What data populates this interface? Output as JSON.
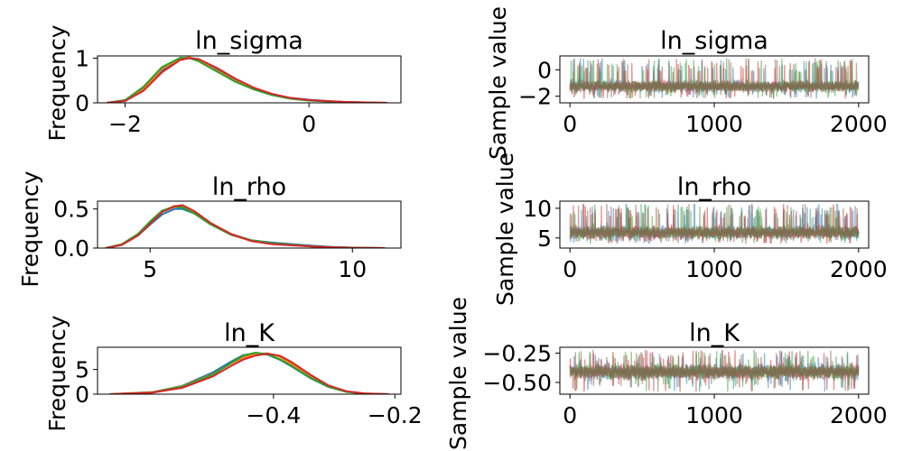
{
  "colors": [
    "#1f77b4",
    "#ff7f0e",
    "#2ca02c",
    "#d62728",
    "#9467bd",
    "#8c564b"
  ],
  "chart_data": [
    {
      "id": "kde-ln-sigma",
      "type": "line",
      "title": "ln_sigma",
      "ylabel": "Frequency",
      "xlim": [
        -2.3,
        1.0
      ],
      "ylim": [
        0,
        1.05
      ],
      "xticks": [
        {
          "value": -2,
          "label": "−2"
        },
        {
          "value": 0,
          "label": "0"
        }
      ],
      "yticks": [
        {
          "value": 0,
          "label": "0"
        },
        {
          "value": 1,
          "label": "1"
        }
      ],
      "series": [
        {
          "x": [
            -2.2,
            -2.0,
            -1.8,
            -1.6,
            -1.4,
            -1.3,
            -1.2,
            -1.0,
            -0.8,
            -0.6,
            -0.4,
            -0.2,
            0.0,
            0.2,
            0.4,
            0.6,
            0.85
          ],
          "values": [
            0.0,
            0.06,
            0.32,
            0.72,
            0.98,
            1.0,
            0.96,
            0.75,
            0.52,
            0.33,
            0.19,
            0.11,
            0.07,
            0.04,
            0.02,
            0.01,
            0.0
          ]
        },
        {
          "x": [
            -2.2,
            -2.0,
            -1.8,
            -1.6,
            -1.4,
            -1.3,
            -1.2,
            -1.0,
            -0.8,
            -0.6,
            -0.4,
            -0.2,
            0.0,
            0.2,
            0.4,
            0.6,
            0.85
          ],
          "values": [
            0.0,
            0.05,
            0.3,
            0.76,
            1.0,
            1.02,
            0.95,
            0.72,
            0.49,
            0.31,
            0.18,
            0.1,
            0.06,
            0.03,
            0.02,
            0.01,
            0.0
          ]
        },
        {
          "x": [
            -2.2,
            -2.0,
            -1.8,
            -1.6,
            -1.4,
            -1.3,
            -1.2,
            -1.0,
            -0.8,
            -0.6,
            -0.4,
            -0.2,
            0.0,
            0.2,
            0.4,
            0.6,
            0.85
          ],
          "values": [
            0.0,
            0.06,
            0.36,
            0.8,
            1.01,
            1.0,
            0.93,
            0.7,
            0.47,
            0.3,
            0.17,
            0.09,
            0.05,
            0.03,
            0.01,
            0.0,
            0.0
          ]
        },
        {
          "x": [
            -2.2,
            -2.0,
            -1.8,
            -1.6,
            -1.4,
            -1.3,
            -1.2,
            -1.0,
            -0.8,
            -0.6,
            -0.4,
            -0.2,
            0.0,
            0.2,
            0.4,
            0.6,
            0.85
          ],
          "values": [
            0.0,
            0.04,
            0.27,
            0.68,
            0.96,
            1.0,
            0.98,
            0.78,
            0.54,
            0.34,
            0.2,
            0.11,
            0.06,
            0.04,
            0.02,
            0.01,
            0.0
          ]
        }
      ]
    },
    {
      "id": "trace-ln-sigma",
      "type": "line",
      "title": "ln_sigma",
      "ylabel": "Sample value",
      "xlim": [
        -70,
        2070
      ],
      "ylim": [
        -2.5,
        1.05
      ],
      "xticks": [
        {
          "value": 0,
          "label": "0"
        },
        {
          "value": 1000,
          "label": "1000"
        },
        {
          "value": 2000,
          "label": "2000"
        }
      ],
      "yticks": [
        {
          "value": -2,
          "label": "−2"
        },
        {
          "value": 0,
          "label": "0"
        }
      ],
      "trace": {
        "n": 2000,
        "center": -1.25,
        "spread": 0.3,
        "low": -2.2,
        "high": 0.9,
        "spikes": 0.04
      }
    },
    {
      "id": "kde-ln-rho",
      "type": "line",
      "title": "ln_rho",
      "ylabel": "Frequency",
      "xlim": [
        3.7,
        11.2
      ],
      "ylim": [
        0,
        0.6
      ],
      "xticks": [
        {
          "value": 5,
          "label": "5"
        },
        {
          "value": 10,
          "label": "10"
        }
      ],
      "yticks": [
        {
          "value": 0,
          "label": "0.0"
        },
        {
          "value": 0.5,
          "label": "0.5"
        }
      ],
      "series": [
        {
          "x": [
            3.9,
            4.3,
            4.7,
            5.0,
            5.3,
            5.6,
            5.8,
            6.1,
            6.5,
            7.0,
            7.5,
            8.0,
            8.5,
            9.0,
            9.5,
            10.0,
            10.8
          ],
          "values": [
            0.0,
            0.04,
            0.16,
            0.3,
            0.43,
            0.5,
            0.5,
            0.44,
            0.31,
            0.18,
            0.1,
            0.07,
            0.05,
            0.03,
            0.015,
            0.006,
            0.0
          ]
        },
        {
          "x": [
            3.9,
            4.3,
            4.7,
            5.0,
            5.3,
            5.6,
            5.8,
            6.1,
            6.5,
            7.0,
            7.5,
            8.0,
            8.5,
            9.0,
            9.5,
            10.0,
            10.8
          ],
          "values": [
            0.0,
            0.04,
            0.17,
            0.32,
            0.47,
            0.54,
            0.54,
            0.46,
            0.31,
            0.17,
            0.09,
            0.06,
            0.04,
            0.02,
            0.01,
            0.004,
            0.0
          ]
        },
        {
          "x": [
            3.9,
            4.3,
            4.7,
            5.0,
            5.3,
            5.6,
            5.8,
            6.1,
            6.5,
            7.0,
            7.5,
            8.0,
            8.5,
            9.0,
            9.5,
            10.0,
            10.8
          ],
          "values": [
            0.0,
            0.05,
            0.18,
            0.34,
            0.48,
            0.53,
            0.52,
            0.44,
            0.3,
            0.17,
            0.1,
            0.06,
            0.04,
            0.02,
            0.01,
            0.004,
            0.0
          ]
        },
        {
          "x": [
            3.9,
            4.3,
            4.7,
            5.0,
            5.3,
            5.6,
            5.8,
            6.1,
            6.5,
            7.0,
            7.5,
            8.0,
            8.5,
            9.0,
            9.5,
            10.0,
            10.8
          ],
          "values": [
            0.0,
            0.04,
            0.16,
            0.31,
            0.46,
            0.53,
            0.55,
            0.47,
            0.32,
            0.18,
            0.09,
            0.05,
            0.035,
            0.02,
            0.01,
            0.003,
            0.0
          ]
        }
      ]
    },
    {
      "id": "trace-ln-rho",
      "type": "line",
      "title": "ln_rho",
      "ylabel": "Sample value",
      "xlim": [
        -70,
        2070
      ],
      "ylim": [
        3.3,
        11.2
      ],
      "xticks": [
        {
          "value": 0,
          "label": "0"
        },
        {
          "value": 1000,
          "label": "1000"
        },
        {
          "value": 2000,
          "label": "2000"
        }
      ],
      "yticks": [
        {
          "value": 5,
          "label": "5"
        },
        {
          "value": 10,
          "label": "10"
        }
      ],
      "trace": {
        "n": 2000,
        "center": 5.9,
        "spread": 0.75,
        "low": 4.0,
        "high": 10.8,
        "spikes": 0.04
      }
    },
    {
      "id": "kde-ln-k",
      "type": "line",
      "title": "ln_K",
      "ylabel": "Frequency",
      "xlim": [
        -0.69,
        -0.19
      ],
      "ylim": [
        0,
        9.5
      ],
      "xticks": [
        {
          "value": -0.4,
          "label": "−0.4"
        },
        {
          "value": -0.2,
          "label": "−0.2"
        }
      ],
      "yticks": [
        {
          "value": 0,
          "label": "0"
        },
        {
          "value": 5,
          "label": "5"
        }
      ],
      "series": [
        {
          "x": [
            -0.67,
            -0.6,
            -0.55,
            -0.5,
            -0.47,
            -0.45,
            -0.43,
            -0.41,
            -0.39,
            -0.37,
            -0.34,
            -0.31,
            -0.28,
            -0.25,
            -0.21
          ],
          "values": [
            0.0,
            0.4,
            1.7,
            4.4,
            6.6,
            7.9,
            8.3,
            8.0,
            7.0,
            5.6,
            3.3,
            1.5,
            0.5,
            0.12,
            0.0
          ]
        },
        {
          "x": [
            -0.67,
            -0.6,
            -0.55,
            -0.5,
            -0.47,
            -0.45,
            -0.43,
            -0.41,
            -0.39,
            -0.37,
            -0.34,
            -0.31,
            -0.28,
            -0.25,
            -0.21
          ],
          "values": [
            0.0,
            0.4,
            1.6,
            4.1,
            6.2,
            7.4,
            8.1,
            8.3,
            7.6,
            6.1,
            3.6,
            1.6,
            0.5,
            0.13,
            0.0
          ]
        },
        {
          "x": [
            -0.67,
            -0.6,
            -0.55,
            -0.5,
            -0.47,
            -0.45,
            -0.43,
            -0.41,
            -0.39,
            -0.37,
            -0.34,
            -0.31,
            -0.28,
            -0.25,
            -0.21
          ],
          "values": [
            0.0,
            0.35,
            1.5,
            4.0,
            6.3,
            7.8,
            8.4,
            8.1,
            7.1,
            5.7,
            3.4,
            1.5,
            0.45,
            0.1,
            0.0
          ]
        },
        {
          "x": [
            -0.67,
            -0.6,
            -0.55,
            -0.5,
            -0.47,
            -0.45,
            -0.43,
            -0.41,
            -0.39,
            -0.37,
            -0.34,
            -0.31,
            -0.28,
            -0.25,
            -0.21
          ],
          "values": [
            0.0,
            0.3,
            1.3,
            3.6,
            5.7,
            7.0,
            7.8,
            8.2,
            7.8,
            6.5,
            4.0,
            1.8,
            0.6,
            0.15,
            0.0
          ]
        }
      ]
    },
    {
      "id": "trace-ln-k",
      "type": "line",
      "title": "ln_K",
      "ylabel": "Sample value",
      "xlim": [
        -70,
        2070
      ],
      "ylim": [
        -0.6,
        -0.2
      ],
      "xticks": [
        {
          "value": 0,
          "label": "0"
        },
        {
          "value": 1000,
          "label": "1000"
        },
        {
          "value": 2000,
          "label": "2000"
        }
      ],
      "yticks": [
        {
          "value": -0.5,
          "label": "−0.50"
        },
        {
          "value": -0.25,
          "label": "−0.25"
        }
      ],
      "trace": {
        "n": 2000,
        "center": -0.41,
        "spread": 0.045,
        "low": -0.58,
        "high": -0.22,
        "spikes": 0.03
      }
    }
  ]
}
